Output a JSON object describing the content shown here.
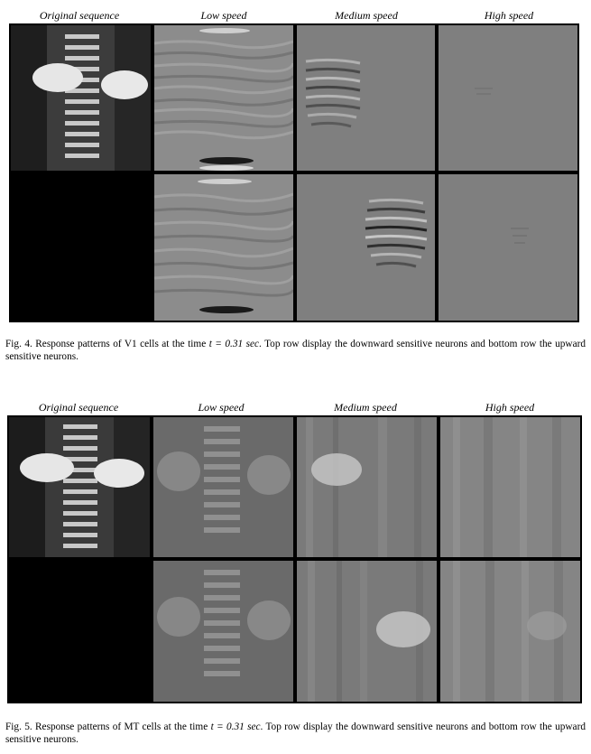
{
  "fig4": {
    "columns": [
      "Original sequence",
      "Low speed",
      "Medium speed",
      "High speed"
    ],
    "caption_lead": "Fig. 4. Response patterns of V1 cells at the time ",
    "caption_time": "t = 0.31 sec",
    "caption_tail": ". Top row display the downward sensitive neurons and bottom row the upward sensitive neurons."
  },
  "fig5": {
    "columns": [
      "Original sequence",
      "Low speed",
      "Medium speed",
      "High speed"
    ],
    "caption_lead": "Fig. 5. Response patterns of MT cells at the time ",
    "caption_time": "t = 0.31 sec",
    "caption_tail": ". Top row display the downward sensitive neurons and bottom row the upward sensitive neurons."
  },
  "colors": {
    "border": "#000000",
    "neutral_gray": "#7f7f7f"
  }
}
